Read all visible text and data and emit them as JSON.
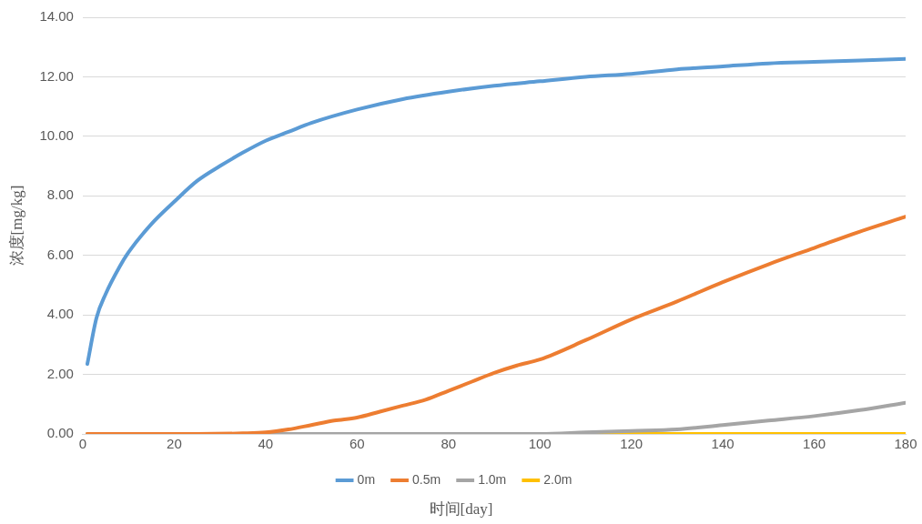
{
  "chart_data": {
    "type": "line",
    "xlabel": "时间[day]",
    "ylabel": "浓度[mg/kg]",
    "xlim": [
      0,
      180
    ],
    "xticks": [
      0,
      20,
      40,
      60,
      80,
      100,
      120,
      140,
      160,
      180
    ],
    "ylim": [
      0,
      14
    ],
    "yticks": [
      {
        "value": 0,
        "label": "0.00"
      },
      {
        "value": 2,
        "label": "2.00"
      },
      {
        "value": 4,
        "label": "4.00"
      },
      {
        "value": 6,
        "label": "6.00"
      },
      {
        "value": 8,
        "label": "8.00"
      },
      {
        "value": 10,
        "label": "10.00"
      },
      {
        "value": 12,
        "label": "12.00"
      },
      {
        "value": 14,
        "label": "14.00"
      }
    ],
    "grid": "y",
    "legend": "bottom",
    "marker": "none",
    "line_style": "solid",
    "series": [
      {
        "name": "0m",
        "color": "#5b9bd5",
        "x": [
          1,
          3,
          5,
          8,
          10,
          15,
          20,
          25,
          30,
          35,
          40,
          45,
          50,
          60,
          70,
          80,
          90,
          100,
          110,
          120,
          130,
          140,
          150,
          160,
          170,
          180
        ],
        "values": [
          2.35,
          3.9,
          4.7,
          5.6,
          6.1,
          7.05,
          7.8,
          8.5,
          9.0,
          9.45,
          9.85,
          10.15,
          10.45,
          10.9,
          11.25,
          11.5,
          11.7,
          11.85,
          12.0,
          12.1,
          12.25,
          12.35,
          12.45,
          12.5,
          12.55,
          12.6
        ]
      },
      {
        "name": "0.5m",
        "color": "#ed7d31",
        "x": [
          1,
          25,
          35,
          40,
          45,
          50,
          55,
          60,
          65,
          70,
          75,
          80,
          85,
          90,
          95,
          100,
          110,
          120,
          130,
          140,
          150,
          160,
          170,
          180
        ],
        "values": [
          0,
          0,
          0.02,
          0.05,
          0.15,
          0.3,
          0.45,
          0.55,
          0.75,
          0.95,
          1.15,
          1.45,
          1.75,
          2.05,
          2.3,
          2.5,
          3.15,
          3.85,
          4.45,
          5.1,
          5.7,
          6.25,
          6.8,
          7.3
        ]
      },
      {
        "name": "1.0m",
        "color": "#a5a5a5",
        "x": [
          1,
          100,
          110,
          120,
          130,
          140,
          150,
          160,
          170,
          180
        ],
        "values": [
          0,
          0,
          0.05,
          0.1,
          0.15,
          0.3,
          0.45,
          0.6,
          0.8,
          1.05
        ]
      },
      {
        "name": "2.0m",
        "color": "#ffc000",
        "x": [
          1,
          180
        ],
        "values": [
          0,
          0
        ]
      }
    ]
  }
}
